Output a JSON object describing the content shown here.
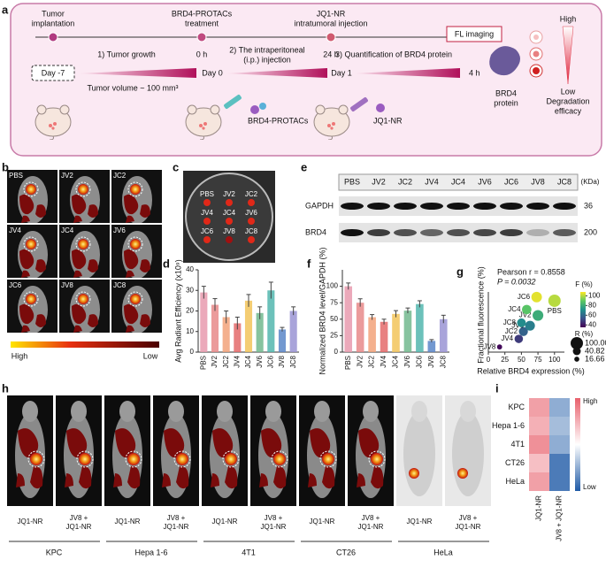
{
  "figure": {
    "a": {
      "label": "a",
      "steps": [
        [
          "Tumor",
          "implantation"
        ],
        [
          "BRD4-PROTACs",
          "treatment"
        ],
        [
          "JQ1-NR",
          "intratumoral injection"
        ]
      ],
      "phases": [
        "1) Tumor growth",
        [
          "2) The intraperitoneal",
          "(i.p.) injection"
        ],
        "3) Quantification of BRD4 protein"
      ],
      "times": [
        "0 h",
        "24 h",
        "4 h"
      ],
      "days": [
        "Day -7",
        "Day 0",
        "Day 1"
      ],
      "tumor_volume": "Tumor volume ~ 100 mm³",
      "fl_imaging": "FL imaging",
      "drugs": [
        "BRD4-PROTACs",
        "JQ1-NR"
      ],
      "protein": [
        "BRD4",
        "protein"
      ],
      "scale": {
        "high": "High",
        "low": "Low",
        "caption": [
          "Degradation",
          "efficacy"
        ]
      }
    },
    "b": {
      "label": "b",
      "groups": [
        "PBS",
        "JV2",
        "JC2",
        "JV4",
        "JC4",
        "JV6",
        "JC6",
        "JV8",
        "JC8"
      ],
      "scale_high": "High",
      "scale_low": "Low"
    },
    "c": {
      "label": "c",
      "groups": [
        "PBS",
        "JV2",
        "JC2",
        "JV4",
        "JC4",
        "JV6",
        "JC6",
        "JV8",
        "JC8"
      ]
    },
    "e": {
      "label": "e",
      "lanes": [
        "PBS",
        "JV2",
        "JC2",
        "JV4",
        "JC4",
        "JV6",
        "JC6",
        "JV8",
        "JC8"
      ],
      "unit": "(KDa)",
      "rows": [
        "GAPDH",
        "BRD4"
      ],
      "weights": [
        36,
        200
      ]
    },
    "h": {
      "label": "h",
      "conditions": [
        "JQ1-NR",
        [
          "JV8 +",
          "JQ1-NR"
        ]
      ],
      "cell_lines": [
        "KPC",
        "Hepa 1-6",
        "4T1",
        "CT26",
        "HeLa"
      ]
    }
  },
  "chart_data": [
    {
      "label": "d",
      "type": "bar",
      "ylabel": "Avg Radiant Efficiency (x10⁹)",
      "categories": [
        "PBS",
        "JV2",
        "JC2",
        "JV4",
        "JC4",
        "JV6",
        "JC6",
        "JV8",
        "JC8"
      ],
      "values": [
        29,
        23,
        17,
        14,
        25,
        19,
        30,
        11,
        20
      ],
      "errors": [
        3,
        3,
        3,
        3,
        3,
        3,
        4,
        1,
        2
      ],
      "colors": [
        "#e89aae",
        "#e88a8a",
        "#f2a27a",
        "#e46a6a",
        "#f2c45a",
        "#72b88e",
        "#52b6ae",
        "#5a86c8",
        "#9a94d4"
      ],
      "ylim": [
        0,
        40
      ],
      "yticks": [
        0,
        10,
        20,
        30,
        40
      ]
    },
    {
      "label": "f",
      "type": "bar",
      "ylabel": "Normalized BRD4 level/GAPDH (%)",
      "categories": [
        "PBS",
        "JV2",
        "JC2",
        "JV4",
        "JC4",
        "JV6",
        "JC6",
        "JV8",
        "JC8"
      ],
      "values": [
        100,
        75,
        53,
        46,
        58,
        63,
        73,
        17,
        50
      ],
      "errors": [
        5,
        6,
        4,
        4,
        5,
        4,
        5,
        2,
        6
      ],
      "colors": [
        "#e89aae",
        "#e88a8a",
        "#f2a27a",
        "#e46a6a",
        "#f2c45a",
        "#72b88e",
        "#52b6ae",
        "#5a86c8",
        "#9a94d4"
      ],
      "ylim": [
        0,
        125
      ],
      "yticks": [
        0,
        25,
        50,
        75,
        100
      ]
    },
    {
      "label": "g",
      "type": "bubble",
      "xlabel": "Relative BRD4 expression (%)",
      "ylabel": "Fractional fluorescence (%)",
      "annotations": [
        "Pearson r = 0.8558",
        "P = 0.0032"
      ],
      "categories": [
        "PBS",
        "JV2",
        "JC2",
        "JV4",
        "JC4",
        "JV6",
        "JC6",
        "JV8",
        "JC8"
      ],
      "x": [
        100,
        75,
        53,
        46,
        58,
        63,
        73,
        17,
        50
      ],
      "values": [
        100,
        80,
        58,
        48,
        88,
        66,
        105,
        37,
        70
      ],
      "sizes": [
        100,
        75,
        53,
        46,
        58,
        63,
        73,
        17,
        50
      ],
      "xlim": [
        0,
        115
      ],
      "xticks": [
        0,
        25,
        50,
        75,
        100
      ],
      "ylim": [
        30,
        112
      ],
      "colormap": [
        "#440154",
        "#3b528b",
        "#21918c",
        "#5ec962",
        "#fde725"
      ],
      "colorbar": {
        "title": "F (%)",
        "lim": [
          35,
          108
        ],
        "ticks": [
          40,
          60,
          80,
          100
        ]
      },
      "size_legend": {
        "title": "R (%)",
        "values": [
          {
            "value": 100,
            "label": "100.00"
          },
          {
            "value": 40.82,
            "label": "40.82"
          },
          {
            "value": 16.66,
            "label": "16.66"
          }
        ]
      }
    },
    {
      "label": "i",
      "type": "heatmap",
      "rows": [
        "KPC",
        "Hepa 1-6",
        "4T1",
        "CT26",
        "HeLa"
      ],
      "columns": [
        "JQ1-NR",
        "JV8 + JQ1-NR"
      ],
      "values": [
        [
          0.8,
          0.25
        ],
        [
          0.75,
          0.3
        ],
        [
          0.85,
          0.25
        ],
        [
          0.7,
          0.1
        ],
        [
          0.8,
          0.1
        ]
      ],
      "vlim": [
        0,
        1
      ],
      "colormap": [
        "#1f5aa6",
        "#ffffff",
        "#e8606c"
      ],
      "colorbar": {
        "high": "High",
        "low": "Low"
      }
    }
  ]
}
